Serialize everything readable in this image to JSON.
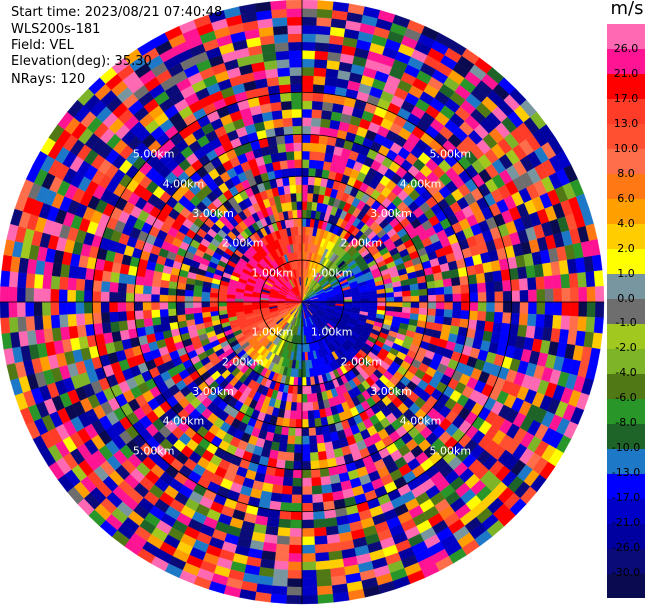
{
  "info": {
    "start_time": "Start time: 2023/08/21 07:40:48",
    "site": "WLS200s-181",
    "field": "Field: VEL",
    "elevation": "Elevation(deg): 35.30",
    "nrays": "NRays: 120"
  },
  "colorbar": {
    "title": "m/s",
    "levels": [
      "-30.0",
      "-26.0",
      "-21.0",
      "-17.0",
      "-13.0",
      "-10.0",
      "-8.0",
      "-6.0",
      "-4.0",
      "-2.0",
      "-1.0",
      "0.0",
      "1.0",
      "2.0",
      "4.0",
      "6.0",
      "8.0",
      "10.0",
      "13.0",
      "17.0",
      "21.0",
      "26.0"
    ],
    "colors": [
      "#0a0a50",
      "#0a0a78",
      "#0000a0",
      "#0000c8",
      "#0000ff",
      "#1e78c8",
      "#1e6428",
      "#289628",
      "#507814",
      "#7db428",
      "#a0c81e",
      "#6e6e6e",
      "#7896a0",
      "#ffff00",
      "#ffcd00",
      "#ffa000",
      "#ff7814",
      "#ff6e4b",
      "#ff5032",
      "#ff3c28",
      "#ff0000",
      "#ff1493",
      "#ff69b4"
    ]
  },
  "chart_data": {
    "type": "heatmap",
    "projection": "polar-ppi",
    "field": "VEL",
    "units": "m/s",
    "nrays": 120,
    "range_rings_labels": [
      "1.00km",
      "2.00km",
      "3.00km",
      "4.00km",
      "5.00km"
    ],
    "range_rings_km": [
      1,
      2,
      3,
      4,
      5
    ],
    "max_range_km": 7.2,
    "pattern": "Near-range coherent winds: positive velocities (red/pink) toward west and north-northwest, negative velocities (blue) toward south-east, transition through yellow near north-east; beyond ~2 km random noise across full color scale."
  }
}
